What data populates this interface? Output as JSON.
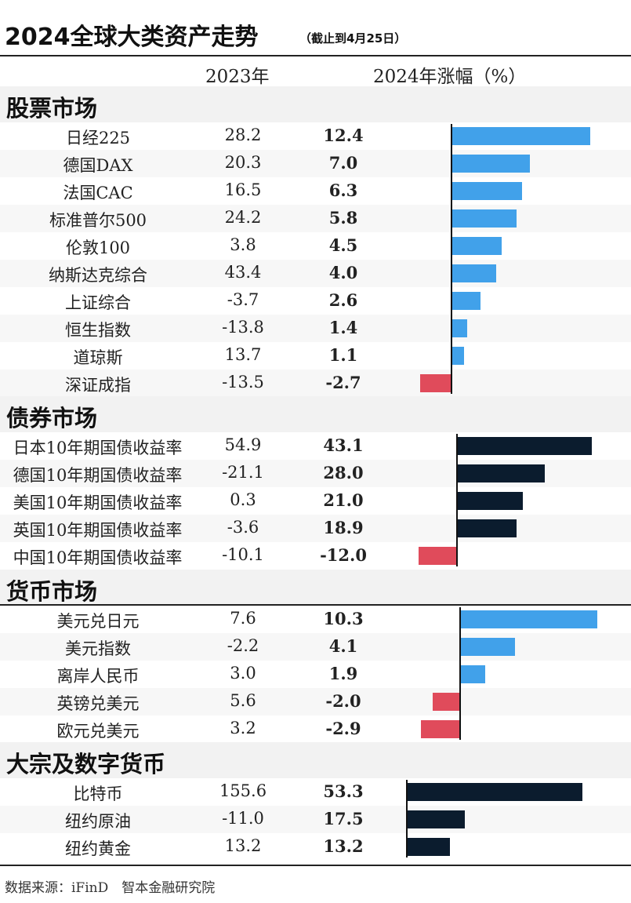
{
  "title": "2024全球大类资产走势",
  "subtitle": "（截止到4月25日）",
  "columns": {
    "year2023": "2023年",
    "year2024": "2024年涨幅（%）"
  },
  "footer": "数据来源：iFinD　智本金融研究院",
  "colors": {
    "positive": "#41a1ea",
    "negative": "#e04b5b",
    "dark": "#0b1c2e"
  },
  "chart_data": {
    "type": "bar",
    "sections": [
      {
        "name": "股票市场",
        "rows": [
          {
            "label": "日经225",
            "v2023": "28.2",
            "v2024": "12.4",
            "value": 12.4
          },
          {
            "label": "德国DAX",
            "v2023": "20.3",
            "v2024": "7.0",
            "value": 7.0
          },
          {
            "label": "法国CAC",
            "v2023": "16.5",
            "v2024": "6.3",
            "value": 6.3
          },
          {
            "label": "标准普尔500",
            "v2023": "24.2",
            "v2024": "5.8",
            "value": 5.8
          },
          {
            "label": "伦敦100",
            "v2023": "3.8",
            "v2024": "4.5",
            "value": 4.5
          },
          {
            "label": "纳斯达克综合",
            "v2023": "43.4",
            "v2024": "4.0",
            "value": 4.0
          },
          {
            "label": "上证综合",
            "v2023": "-3.7",
            "v2024": "2.6",
            "value": 2.6
          },
          {
            "label": "恒生指数",
            "v2023": "-13.8",
            "v2024": "1.4",
            "value": 1.4
          },
          {
            "label": "道琼斯",
            "v2023": "13.7",
            "v2024": "1.1",
            "value": 1.1
          },
          {
            "label": "深证成指",
            "v2023": "-13.5",
            "v2024": "-2.7",
            "value": -2.7
          }
        ]
      },
      {
        "name": "债券市场",
        "rows": [
          {
            "label": "日本10年期国债收益率",
            "v2023": "54.9",
            "v2024": "43.1",
            "value": 43.1
          },
          {
            "label": "德国10年期国债收益率",
            "v2023": "-21.1",
            "v2024": "28.0",
            "value": 28.0
          },
          {
            "label": "美国10年期国债收益率",
            "v2023": "0.3",
            "v2024": "21.0",
            "value": 21.0
          },
          {
            "label": "英国10年期国债收益率",
            "v2023": "-3.6",
            "v2024": "18.9",
            "value": 18.9
          },
          {
            "label": "中国10年期国债收益率",
            "v2023": "-10.1",
            "v2024": "-12.0",
            "value": -12.0
          }
        ]
      },
      {
        "name": "货币市场",
        "rows": [
          {
            "label": "美元兑日元",
            "v2023": "7.6",
            "v2024": "10.3",
            "value": 10.3
          },
          {
            "label": "美元指数",
            "v2023": "-2.2",
            "v2024": "4.1",
            "value": 4.1
          },
          {
            "label": "离岸人民币",
            "v2023": "3.0",
            "v2024": "1.9",
            "value": 1.9
          },
          {
            "label": "英镑兑美元",
            "v2023": "5.6",
            "v2024": "-2.0",
            "value": -2.0
          },
          {
            "label": "欧元兑美元",
            "v2023": "3.2",
            "v2024": "-2.9",
            "value": -2.9
          }
        ]
      },
      {
        "name": "大宗及数字货币",
        "rows": [
          {
            "label": "比特币",
            "v2023": "155.6",
            "v2024": "53.3",
            "value": 53.3
          },
          {
            "label": "纽约原油",
            "v2023": "-11.0",
            "v2024": "17.5",
            "value": 17.5
          },
          {
            "label": "纽约黄金",
            "v2023": "13.2",
            "v2024": "13.2",
            "value": 13.2
          }
        ]
      }
    ]
  }
}
